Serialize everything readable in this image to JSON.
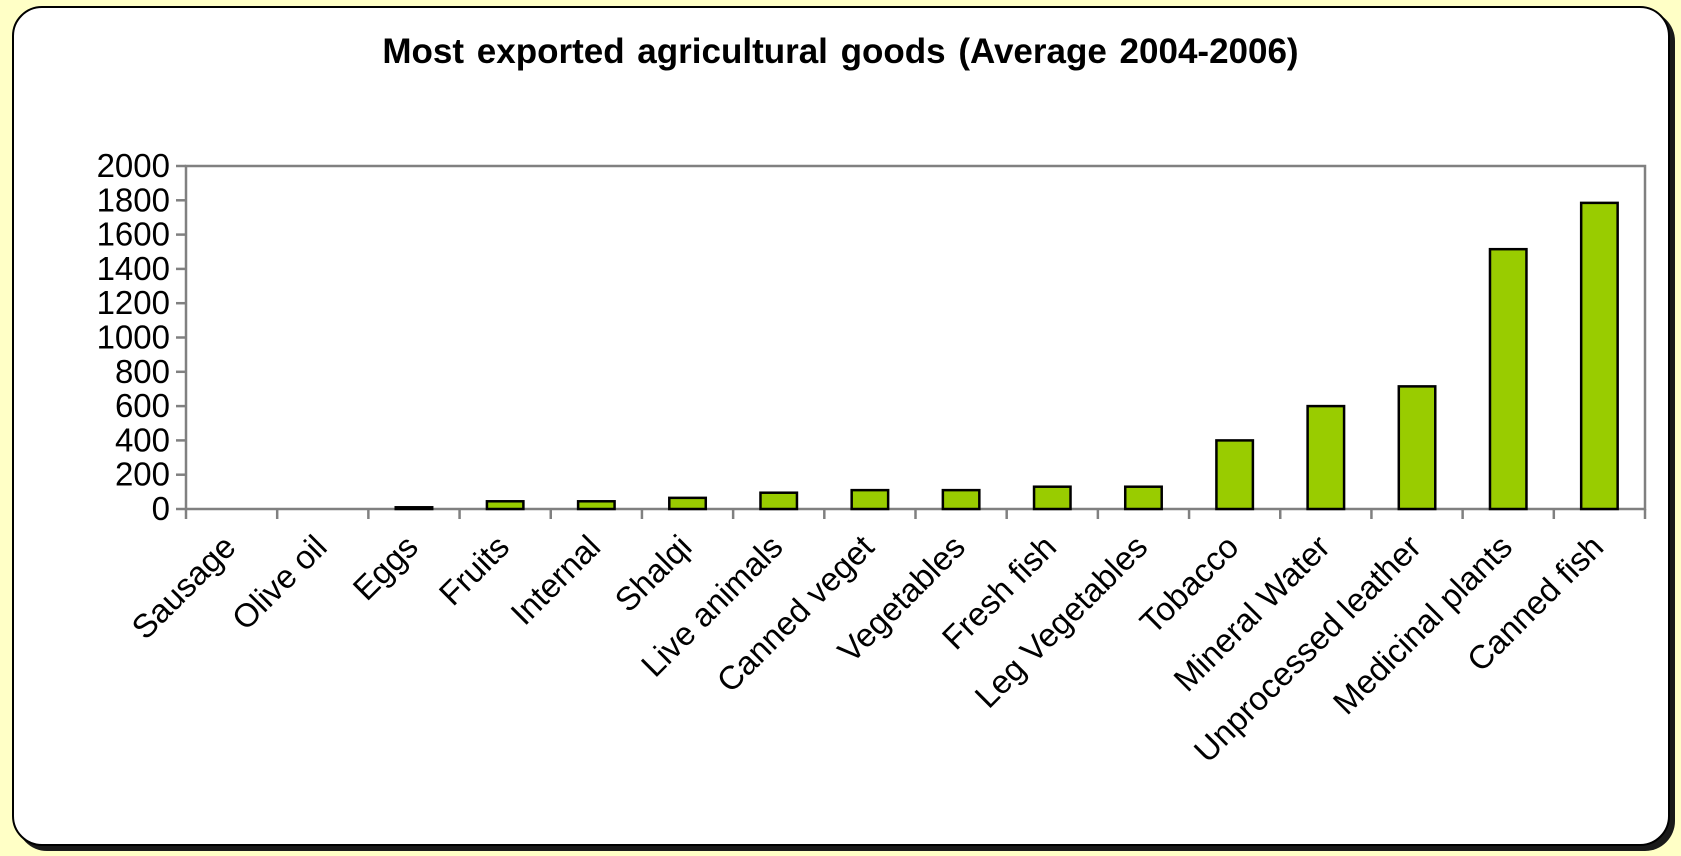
{
  "chart_data": {
    "type": "bar",
    "title": "Most exported agricultural goods (Average 2004-2006)",
    "xlabel": "",
    "ylabel": "",
    "categories": [
      "Sausage",
      "Olive oil",
      "Eggs",
      "Fruits",
      "Internal",
      "Shalqi",
      "Live animals",
      "Canned veget",
      "Vegetables",
      "Fresh fish",
      "Leg Vegetables",
      "Tobacco",
      "Mineral Water",
      "Unprocessed leather",
      "Medicinal plants",
      "Canned fish"
    ],
    "values": [
      0,
      0,
      10,
      45,
      45,
      65,
      95,
      110,
      110,
      130,
      130,
      400,
      600,
      715,
      1515,
      1785
    ],
    "ylim": [
      0,
      2000
    ],
    "yticks": [
      "0",
      "200",
      "400",
      "600",
      "800",
      "1000",
      "1200",
      "1400",
      "1600",
      "1800",
      "2000"
    ],
    "grid": false,
    "legend": "none",
    "colors": {
      "bar": "#99cc00",
      "bar_stroke": "#000000",
      "axis": "#808080",
      "frame_bg": "#ffffff",
      "page_bg": "#ffffc6"
    }
  }
}
